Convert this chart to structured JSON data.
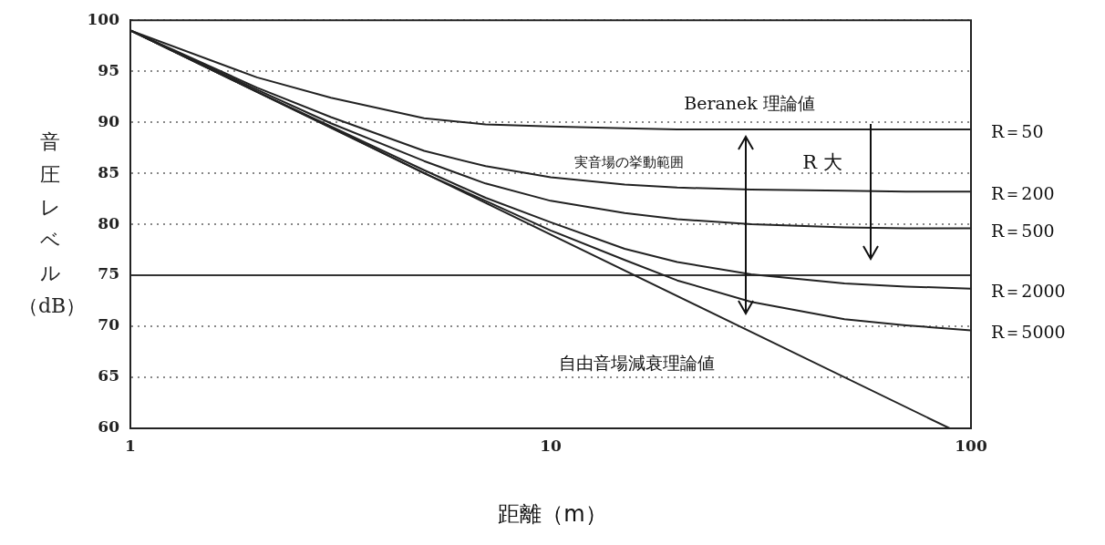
{
  "chart_data": {
    "type": "line",
    "xlabel": "距離（m）",
    "ylabel": "音圧レベル（dB）",
    "log": "x",
    "xlim": [
      1,
      100
    ],
    "xticks": [
      1,
      10,
      100
    ],
    "ylim": [
      60,
      100
    ],
    "yticks": [
      60,
      65,
      70,
      75,
      80,
      85,
      90,
      95,
      100
    ],
    "grid": "y",
    "legend": false,
    "marker": "none",
    "line_style": "solid",
    "x": [
      1,
      2,
      3,
      5,
      7,
      10,
      15,
      20,
      30,
      50,
      70,
      100
    ],
    "series": [
      {
        "name": "R＝50",
        "color": "#222222",
        "values": [
          99,
          94.4,
          92.4,
          90.4,
          89.8,
          89.6,
          89.4,
          89.3,
          89.3,
          89.3,
          89.3,
          89.3
        ]
      },
      {
        "name": "R＝200",
        "color": "#222222",
        "values": [
          99,
          93.4,
          90.5,
          87.2,
          85.7,
          84.6,
          83.9,
          83.6,
          83.4,
          83.3,
          83.2,
          83.2
        ]
      },
      {
        "name": "R＝500",
        "color": "#222222",
        "values": [
          99,
          93.2,
          89.9,
          86.2,
          84,
          82.3,
          81.1,
          80.5,
          80,
          79.7,
          79.6,
          79.6
        ]
      },
      {
        "name": "R＝2000",
        "color": "#222222",
        "values": [
          99,
          93,
          89.6,
          85.3,
          82.6,
          80.2,
          77.6,
          76.3,
          75.1,
          74.2,
          73.9,
          73.7
        ]
      },
      {
        "name": "R＝5000",
        "color": "#222222",
        "values": [
          99,
          93,
          89.5,
          85,
          82.3,
          79.4,
          76.5,
          74.5,
          72.4,
          70.7,
          70.1,
          69.6
        ]
      },
      {
        "color": "#222222",
        "x": [
          1,
          89
        ],
        "values": [
          99,
          60
        ]
      }
    ],
    "ref_lines": [
      {
        "axis": "y",
        "value": 75,
        "color": "#333333",
        "line_style": "solid"
      }
    ],
    "annotations": [
      "Beranek 理論値",
      "実音場の挙動範囲",
      "R 大",
      "自由音場減衰理論値"
    ]
  }
}
